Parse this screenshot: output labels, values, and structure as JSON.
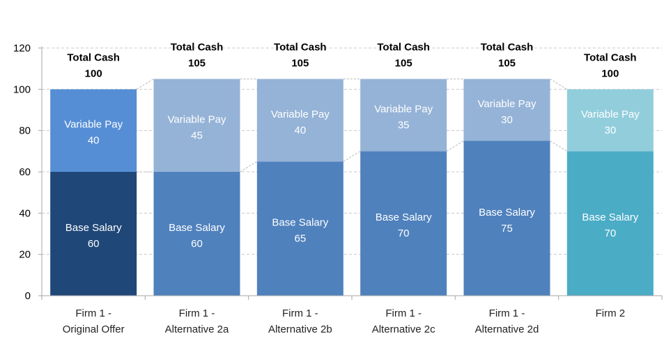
{
  "chart_data": {
    "type": "bar",
    "stacked": true,
    "title": "",
    "xlabel": "",
    "ylabel": "",
    "ylim": [
      0,
      120
    ],
    "yticks": [
      0,
      20,
      40,
      60,
      80,
      100,
      120
    ],
    "grid": true,
    "categories": [
      [
        "Firm 1 -",
        "Original Offer"
      ],
      [
        "Firm 1 -",
        "Alternative 2a"
      ],
      [
        "Firm 1 -",
        "Alternative 2b"
      ],
      [
        "Firm 1 -",
        "Alternative 2c"
      ],
      [
        "Firm 1 -",
        "Alternative 2d"
      ],
      [
        "Firm 2"
      ]
    ],
    "series": [
      {
        "name": "Base Salary",
        "values": [
          60,
          60,
          65,
          70,
          75,
          70
        ],
        "colors": [
          "#1f4778",
          "#4f81bd",
          "#4f81bd",
          "#4f81bd",
          "#4f81bd",
          "#4bacc6"
        ]
      },
      {
        "name": "Variable Pay",
        "values": [
          40,
          45,
          40,
          35,
          30,
          30
        ],
        "colors": [
          "#558ed5",
          "#95b3d7",
          "#95b3d7",
          "#95b3d7",
          "#95b3d7",
          "#92cddc"
        ]
      }
    ],
    "totals": {
      "label": "Total Cash",
      "values": [
        100,
        105,
        105,
        105,
        105,
        100
      ]
    }
  }
}
